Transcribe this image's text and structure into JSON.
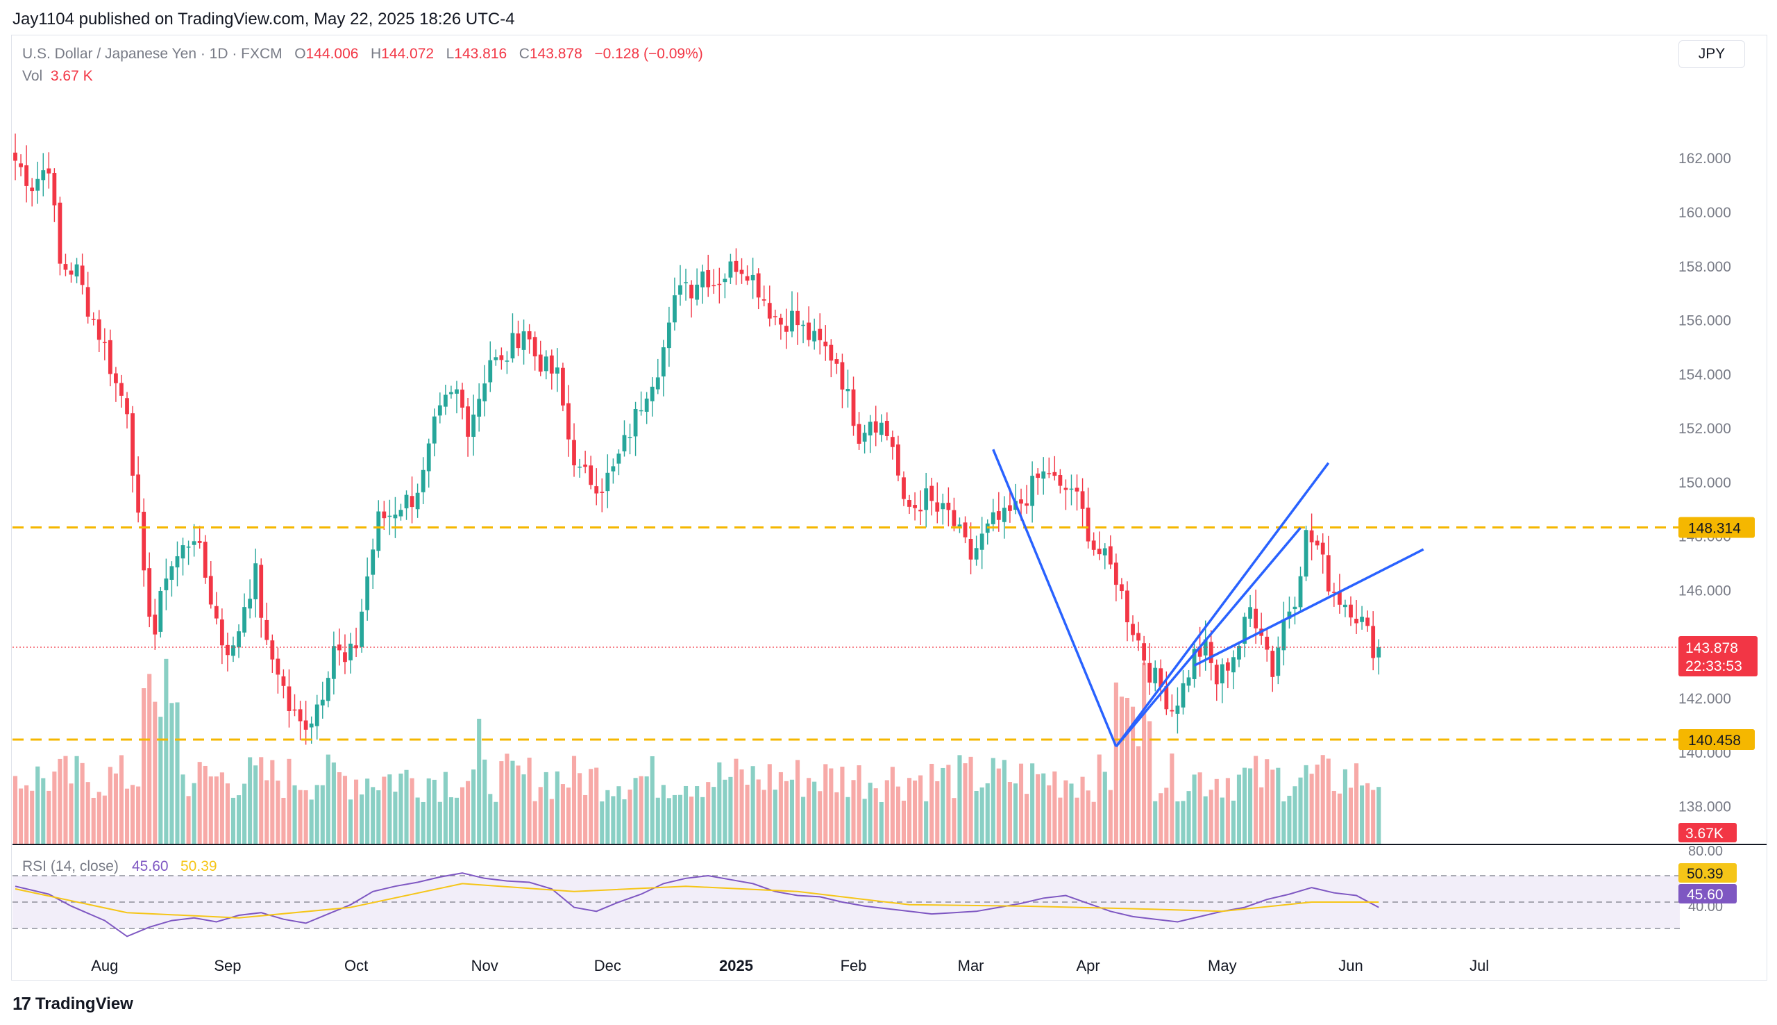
{
  "header": {
    "published": "Jay1104 published on TradingView.com, May 22, 2025 18:26 UTC-4"
  },
  "legend": {
    "symbol": "U.S. Dollar / Japanese Yen · 1D · FXCM",
    "open_label": "O",
    "open": "144.006",
    "high_label": "H",
    "high": "144.072",
    "low_label": "L",
    "low": "143.816",
    "close_label": "C",
    "close": "143.878",
    "change": "−0.128 (−0.09%)",
    "vol_label": "Vol",
    "vol": "3.67 K"
  },
  "currency": "JPY",
  "footer": {
    "brand": "TradingView",
    "logo_glyph": "17"
  },
  "colors": {
    "up": "#26a69a",
    "down": "#f23645",
    "vol_up": "#89cfc4",
    "vol_down": "#f7a9a7",
    "level_line": "#f5b700",
    "trend_line": "#2962ff",
    "rsi": "#7e57c2",
    "rsi_ma": "#f5c518"
  },
  "chart_data": {
    "type": "candlestick",
    "title": "U.S. Dollar / Japanese Yen · 1D · FXCM",
    "y_ticks": [
      "162.000",
      "160.000",
      "158.000",
      "156.000",
      "154.000",
      "152.000",
      "150.000",
      "148.000",
      "146.000",
      "144.000",
      "142.000",
      "140.000",
      "138.000"
    ],
    "ylim": [
      136.6,
      163.6
    ],
    "x_month_labels": [
      "Aug",
      "Sep",
      "Oct",
      "Nov",
      "Dec",
      "2025",
      "Feb",
      "Mar",
      "Apr",
      "May",
      "Jun",
      "Jul"
    ],
    "x_month_bar_index": [
      16,
      38,
      61,
      84,
      106,
      129,
      150,
      171,
      192,
      216,
      239,
      262
    ],
    "close_path": [
      [
        0,
        161.9
      ],
      [
        3,
        161.0
      ],
      [
        6,
        161.8
      ],
      [
        8,
        158.0
      ],
      [
        11,
        157.8
      ],
      [
        13,
        156.5
      ],
      [
        16,
        155.0
      ],
      [
        18,
        153.6
      ],
      [
        20,
        152.8
      ],
      [
        23,
        146.3
      ],
      [
        25,
        144.4
      ],
      [
        27,
        146.7
      ],
      [
        29,
        147.2
      ],
      [
        32,
        148.1
      ],
      [
        34,
        146.5
      ],
      [
        37,
        144.1
      ],
      [
        39,
        143.7
      ],
      [
        41,
        145.5
      ],
      [
        43,
        146.6
      ],
      [
        45,
        143.8
      ],
      [
        47,
        143.1
      ],
      [
        49,
        141.6
      ],
      [
        51,
        141.0
      ],
      [
        53,
        141.3
      ],
      [
        55,
        142.3
      ],
      [
        57,
        144.0
      ],
      [
        59,
        143.2
      ],
      [
        61,
        144.0
      ],
      [
        63,
        146.5
      ],
      [
        65,
        148.6
      ],
      [
        67,
        148.8
      ],
      [
        69,
        149.2
      ],
      [
        71,
        149.4
      ],
      [
        73,
        150.2
      ],
      [
        75,
        152.0
      ],
      [
        77,
        152.9
      ],
      [
        79,
        153.3
      ],
      [
        81,
        152.1
      ],
      [
        83,
        153.2
      ],
      [
        85,
        154.6
      ],
      [
        87,
        154.3
      ],
      [
        89,
        155.1
      ],
      [
        91,
        155.7
      ],
      [
        93,
        154.7
      ],
      [
        95,
        154.2
      ],
      [
        97,
        153.9
      ],
      [
        99,
        151.6
      ],
      [
        101,
        150.3
      ],
      [
        103,
        150.1
      ],
      [
        105,
        149.9
      ],
      [
        107,
        150.4
      ],
      [
        109,
        151.4
      ],
      [
        111,
        152.4
      ],
      [
        113,
        153.5
      ],
      [
        115,
        154.3
      ],
      [
        117,
        155.6
      ],
      [
        119,
        157.6
      ],
      [
        121,
        157.2
      ],
      [
        123,
        157.8
      ],
      [
        125,
        157.4
      ],
      [
        127,
        157.7
      ],
      [
        129,
        158.1
      ],
      [
        131,
        157.9
      ],
      [
        133,
        157.2
      ],
      [
        135,
        156.4
      ],
      [
        137,
        155.9
      ],
      [
        139,
        156.1
      ],
      [
        141,
        155.6
      ],
      [
        143,
        155.2
      ],
      [
        145,
        154.9
      ],
      [
        147,
        154.5
      ],
      [
        149,
        153.1
      ],
      [
        151,
        151.8
      ],
      [
        153,
        152.4
      ],
      [
        155,
        152.1
      ],
      [
        157,
        151.4
      ],
      [
        159,
        149.0
      ],
      [
        161,
        149.1
      ],
      [
        163,
        149.4
      ],
      [
        165,
        148.9
      ],
      [
        167,
        148.8
      ],
      [
        169,
        148.0
      ],
      [
        171,
        147.2
      ],
      [
        173,
        147.9
      ],
      [
        175,
        148.5
      ],
      [
        177,
        148.6
      ],
      [
        179,
        149.0
      ],
      [
        181,
        149.5
      ],
      [
        183,
        150.1
      ],
      [
        185,
        150.4
      ],
      [
        187,
        149.6
      ],
      [
        189,
        149.8
      ],
      [
        191,
        148.8
      ],
      [
        193,
        147.6
      ],
      [
        195,
        147.1
      ],
      [
        197,
        146.5
      ],
      [
        199,
        145.1
      ],
      [
        201,
        144.1
      ],
      [
        203,
        143.0
      ],
      [
        205,
        142.4
      ],
      [
        207,
        141.6
      ],
      [
        209,
        142.4
      ],
      [
        211,
        143.6
      ],
      [
        213,
        143.8
      ],
      [
        215,
        142.6
      ],
      [
        217,
        143.3
      ],
      [
        219,
        144.0
      ],
      [
        221,
        145.3
      ],
      [
        223,
        144.6
      ],
      [
        225,
        143.0
      ],
      [
        227,
        144.9
      ],
      [
        229,
        145.8
      ],
      [
        231,
        148.0
      ],
      [
        233,
        147.6
      ],
      [
        235,
        146.3
      ],
      [
        237,
        145.7
      ],
      [
        239,
        145.4
      ],
      [
        241,
        144.8
      ],
      [
        243,
        143.9
      ],
      [
        244,
        143.878
      ]
    ],
    "last_price": "143.878",
    "countdown": "22:33:53",
    "horizontal_levels": [
      "148.314",
      "140.458"
    ],
    "volume_last": "3.67K",
    "rsi": {
      "label": "RSI (14, close)",
      "value": "45.60",
      "ma_value": "50.39",
      "scale_top": "80.00",
      "scale_bottom": "40.00",
      "path": [
        [
          0,
          62
        ],
        [
          6,
          56
        ],
        [
          10,
          47
        ],
        [
          16,
          36
        ],
        [
          20,
          24
        ],
        [
          24,
          31
        ],
        [
          28,
          36
        ],
        [
          32,
          38
        ],
        [
          36,
          35
        ],
        [
          40,
          40
        ],
        [
          44,
          42
        ],
        [
          48,
          37
        ],
        [
          52,
          34
        ],
        [
          56,
          41
        ],
        [
          60,
          48
        ],
        [
          64,
          58
        ],
        [
          68,
          62
        ],
        [
          72,
          65
        ],
        [
          76,
          69
        ],
        [
          80,
          72
        ],
        [
          84,
          68
        ],
        [
          88,
          66
        ],
        [
          92,
          65
        ],
        [
          96,
          60
        ],
        [
          100,
          46
        ],
        [
          104,
          43
        ],
        [
          108,
          50
        ],
        [
          112,
          56
        ],
        [
          116,
          64
        ],
        [
          120,
          68
        ],
        [
          124,
          70
        ],
        [
          128,
          67
        ],
        [
          132,
          64
        ],
        [
          136,
          58
        ],
        [
          140,
          55
        ],
        [
          144,
          54
        ],
        [
          148,
          50
        ],
        [
          152,
          47
        ],
        [
          156,
          45
        ],
        [
          160,
          43
        ],
        [
          164,
          41
        ],
        [
          168,
          42
        ],
        [
          172,
          43
        ],
        [
          176,
          46
        ],
        [
          180,
          49
        ],
        [
          184,
          53
        ],
        [
          188,
          55
        ],
        [
          192,
          49
        ],
        [
          196,
          43
        ],
        [
          200,
          39
        ],
        [
          204,
          37
        ],
        [
          208,
          35
        ],
        [
          212,
          39
        ],
        [
          216,
          43
        ],
        [
          220,
          46
        ],
        [
          224,
          52
        ],
        [
          228,
          56
        ],
        [
          232,
          61
        ],
        [
          236,
          57
        ],
        [
          240,
          55
        ],
        [
          244,
          46
        ]
      ],
      "ma_path": [
        [
          0,
          60
        ],
        [
          20,
          42
        ],
        [
          40,
          38
        ],
        [
          60,
          46
        ],
        [
          80,
          64
        ],
        [
          100,
          58
        ],
        [
          120,
          62
        ],
        [
          140,
          58
        ],
        [
          160,
          48
        ],
        [
          180,
          47
        ],
        [
          200,
          45
        ],
        [
          216,
          43
        ],
        [
          232,
          50
        ],
        [
          244,
          50
        ]
      ]
    }
  }
}
